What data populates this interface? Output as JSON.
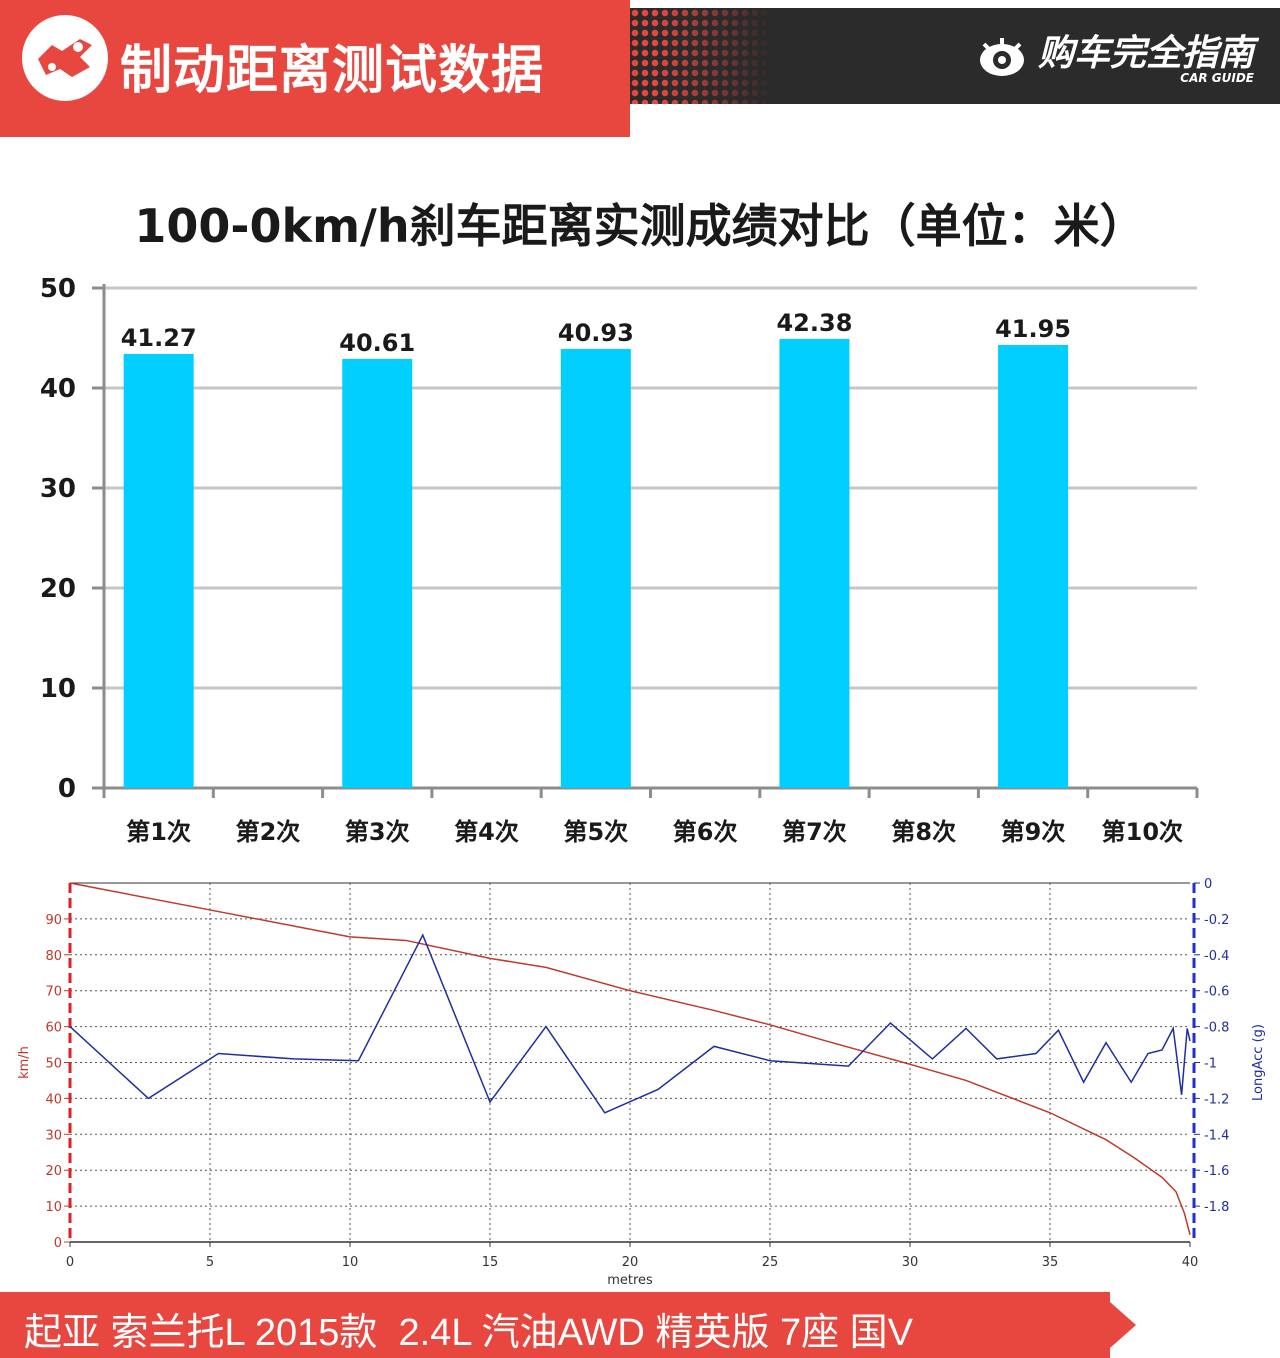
{
  "header": {
    "title": "制动距离测试数据",
    "brand_cn": "购车完全指南",
    "brand_en": "CAR GUIDE"
  },
  "colors": {
    "header_red": "#e8473f",
    "header_dark": "#2b2b2b",
    "bar_blue": "#00cfff",
    "speed_line": "#c0392b",
    "acc_line": "#1f2fa0"
  },
  "chart_data": [
    {
      "type": "bar",
      "title": "100-0km/h刹车距离实测成绩对比（单位：米）",
      "categories": [
        "第1次",
        "第2次",
        "第3次",
        "第4次",
        "第5次",
        "第6次",
        "第7次",
        "第8次",
        "第9次",
        "第10次"
      ],
      "values": [
        41.27,
        null,
        40.61,
        null,
        40.93,
        null,
        42.38,
        null,
        41.95,
        null
      ],
      "bar_heights_shown": [
        43.4,
        null,
        42.9,
        null,
        43.9,
        null,
        44.9,
        null,
        44.3,
        null
      ],
      "yticks": [
        0,
        10,
        20,
        30,
        40,
        50
      ],
      "ylim": [
        0,
        50
      ],
      "grid": true
    },
    {
      "type": "line",
      "xlabel": "metres",
      "ylabel_left": "km/h",
      "ylabel_right": "LongAcc (g)",
      "xlim": [
        0,
        40
      ],
      "ylim_left": [
        0,
        100
      ],
      "ylim_right": [
        -2,
        0
      ],
      "xticks": [
        0,
        5,
        10,
        15,
        20,
        25,
        30,
        35,
        40
      ],
      "yticks_left": [
        0,
        10,
        20,
        30,
        40,
        50,
        60,
        70,
        80,
        90
      ],
      "yticks_right": [
        "0",
        "-0.2",
        "-0.4",
        "-0.6",
        "-0.8",
        "-1",
        "-1.2",
        "-1.4",
        "-1.6",
        "-1.8"
      ],
      "series": [
        {
          "axis": "left",
          "x": [
            0,
            5,
            10,
            12,
            15,
            17,
            20,
            23,
            25,
            27,
            30,
            32,
            35,
            37,
            38,
            39,
            39.5,
            39.8,
            40
          ],
          "values": [
            100,
            92.5,
            85,
            84,
            79,
            76.5,
            70,
            64.5,
            60.5,
            56,
            49.5,
            45,
            36,
            28.5,
            23.5,
            18,
            14,
            8,
            2
          ]
        },
        {
          "axis": "right",
          "x": [
            0,
            2.8,
            5.3,
            8,
            10.3,
            12.6,
            15,
            17,
            19.1,
            21,
            23,
            25,
            27.8,
            29.3,
            30.8,
            32,
            33.1,
            34.5,
            35.3,
            36.2,
            37,
            37.9,
            38.5,
            39,
            39.4,
            39.7,
            39.9,
            40
          ],
          "values": [
            -0.8,
            -1.2,
            -0.95,
            -0.98,
            -0.99,
            -0.29,
            -1.22,
            -0.8,
            -1.28,
            -1.15,
            -0.91,
            -0.99,
            -1.02,
            -0.78,
            -0.98,
            -0.81,
            -0.98,
            -0.95,
            -0.82,
            -1.11,
            -0.89,
            -1.11,
            -0.95,
            -0.93,
            -0.81,
            -1.18,
            -0.81,
            -0.88
          ]
        }
      ]
    }
  ],
  "footer": {
    "text": "起亚 索兰托L 2015款  2.4L 汽油AWD 精英版 7座 国V"
  }
}
